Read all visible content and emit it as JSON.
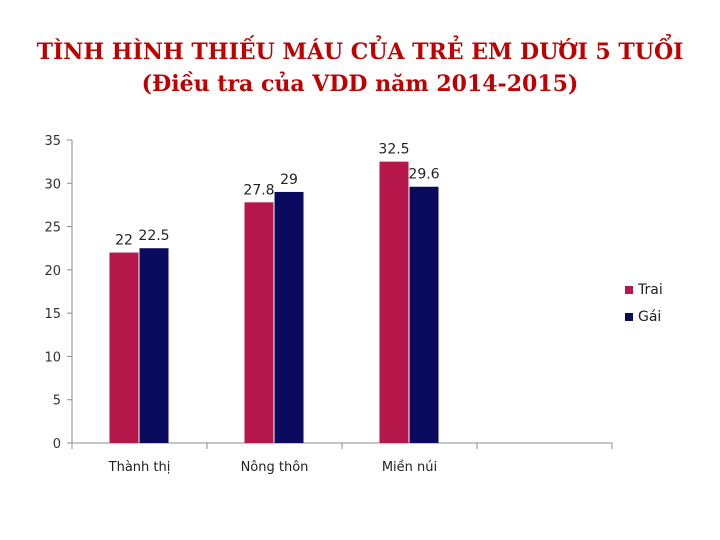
{
  "chart_data": {
    "type": "bar",
    "title": "TÌNH HÌNH THIẾU MÁU CỦA TRẺ EM DƯỚI 5 TUỔI",
    "subtitle": "(Điều tra của VDD năm 2014-2015)",
    "categories": [
      "Thành thị",
      "Nông thôn",
      "Miền núi"
    ],
    "series": [
      {
        "name": "Trai",
        "values": [
          22,
          27.8,
          32.5
        ],
        "color": "#b5174b"
      },
      {
        "name": "Gái",
        "values": [
          22.5,
          29,
          29.6
        ],
        "color": "#0a0a5e"
      }
    ],
    "value_labels": [
      [
        "22",
        "27.8",
        "32.5"
      ],
      [
        "22.5",
        "29",
        "29.6"
      ]
    ],
    "ylim": [
      0,
      35
    ],
    "yticks": [
      0,
      5,
      10,
      15,
      20,
      25,
      30,
      35
    ],
    "grid": false,
    "legend_position": "right"
  }
}
